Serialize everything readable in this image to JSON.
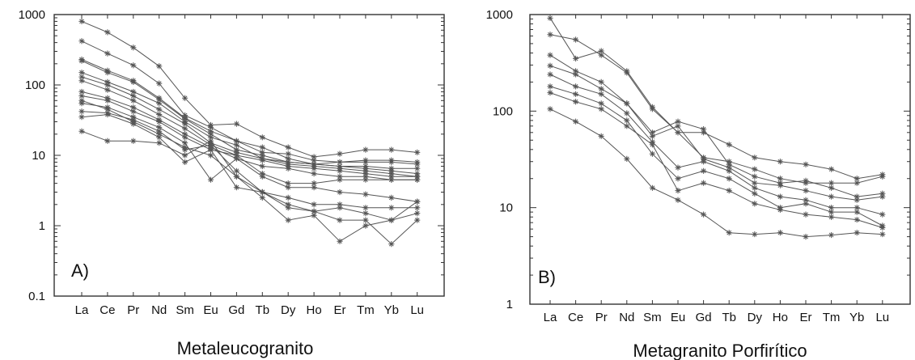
{
  "colors": {
    "line": "#555555",
    "frame": "#333333",
    "text": "#111111"
  },
  "chart_data": [
    {
      "type": "line",
      "panel_label": "A)",
      "title": "Metaleucogranito",
      "y_scale": "log",
      "ylim": [
        0.1,
        1000
      ],
      "y_ticks": [
        0.1,
        1,
        10,
        100,
        1000
      ],
      "y_tick_labels": [
        "0.1",
        "1",
        "10",
        "100",
        "1000"
      ],
      "categories": [
        "La",
        "Ce",
        "Pr",
        "Nd",
        "Sm",
        "Eu",
        "Gd",
        "Tb",
        "Dy",
        "Ho",
        "Er",
        "Tm",
        "Yb",
        "Lu"
      ],
      "grid": false,
      "series": [
        {
          "values": [
            800,
            560,
            340,
            185,
            65,
            27,
            28,
            18,
            13,
            9.5,
            10.5,
            12,
            12,
            11
          ]
        },
        {
          "values": [
            420,
            280,
            190,
            105,
            37,
            25,
            16,
            11,
            10.5,
            8.5,
            8,
            8.5,
            8.5,
            8
          ]
        },
        {
          "values": [
            230,
            160,
            115,
            65,
            34,
            22,
            16,
            13,
            9,
            7.5,
            8,
            8,
            8,
            7.5
          ]
        },
        {
          "values": [
            220,
            150,
            110,
            62,
            33,
            20,
            12,
            10,
            8,
            7.5,
            7,
            7,
            6.5,
            6.5
          ]
        },
        {
          "values": [
            150,
            110,
            80,
            55,
            30,
            18,
            14,
            9,
            8,
            7.5,
            7,
            6.5,
            6,
            5.5
          ]
        },
        {
          "values": [
            130,
            100,
            70,
            45,
            28,
            15,
            11,
            9,
            7.5,
            7,
            6.5,
            6,
            5.5,
            5
          ]
        },
        {
          "values": [
            115,
            85,
            60,
            38,
            24,
            14,
            10,
            8.5,
            7,
            6.5,
            6,
            5.5,
            5,
            5
          ]
        },
        {
          "values": [
            80,
            65,
            48,
            32,
            20,
            13,
            9,
            7,
            6.5,
            5.5,
            5,
            5,
            4.5,
            4.5
          ]
        },
        {
          "values": [
            70,
            60,
            42,
            30,
            18,
            12,
            10,
            5.5,
            4,
            4,
            4.5,
            4.5,
            4.5,
            4.5
          ]
        },
        {
          "values": [
            55,
            48,
            35,
            25,
            15,
            4.5,
            9,
            5,
            3.5,
            3.5,
            3,
            2.8,
            2.5,
            2.2
          ]
        },
        {
          "values": [
            42,
            40,
            32,
            22,
            12,
            14,
            6,
            3,
            2.5,
            2,
            2,
            1.8,
            1.8,
            1.8
          ]
        },
        {
          "values": [
            35,
            38,
            28,
            18,
            8,
            12,
            3.5,
            3,
            1.8,
            1.6,
            1.8,
            1.5,
            1.2,
            2.2
          ]
        },
        {
          "values": [
            22,
            16,
            16,
            15,
            10,
            16,
            5,
            2.5,
            1.2,
            1.4,
            0.6,
            1,
            1.2,
            1.5
          ]
        },
        {
          "values": [
            60,
            45,
            30,
            20,
            13,
            10,
            5,
            3,
            2,
            1.6,
            1.2,
            1.2,
            0.55,
            1.2
          ]
        }
      ]
    },
    {
      "type": "line",
      "panel_label": "B)",
      "title": "Metagranito Porfirítico",
      "y_scale": "log",
      "ylim": [
        1,
        1000
      ],
      "y_ticks": [
        1,
        10,
        100,
        1000
      ],
      "y_tick_labels": [
        "1",
        "10",
        "100",
        "1000"
      ],
      "categories": [
        "La",
        "Ce",
        "Pr",
        "Nd",
        "Sm",
        "Eu",
        "Gd",
        "Tb",
        "Dy",
        "Ho",
        "Er",
        "Tm",
        "Yb",
        "Lu"
      ],
      "grid": false,
      "series": [
        {
          "values": [
            920,
            350,
            420,
            260,
            110,
            60,
            60,
            45,
            33,
            30,
            28,
            25,
            20,
            22
          ]
        },
        {
          "values": [
            620,
            550,
            380,
            250,
            105,
            60,
            33,
            30,
            25,
            20,
            18,
            18,
            18,
            21
          ]
        },
        {
          "values": [
            380,
            260,
            200,
            120,
            60,
            78,
            65,
            28,
            21,
            18,
            19,
            16,
            13,
            14
          ]
        },
        {
          "values": [
            295,
            240,
            170,
            120,
            55,
            70,
            32,
            26,
            18,
            17,
            15,
            13,
            12,
            13
          ]
        },
        {
          "values": [
            240,
            180,
            150,
            95,
            48,
            26,
            30,
            24,
            16,
            13,
            12,
            10,
            10,
            8.5
          ]
        },
        {
          "values": [
            180,
            150,
            120,
            80,
            36,
            20,
            24,
            20,
            14,
            10,
            11,
            9,
            9,
            6.5
          ]
        },
        {
          "values": [
            155,
            125,
            105,
            70,
            45,
            15,
            18,
            15,
            11,
            9.5,
            8.5,
            8,
            7.5,
            6.2
          ]
        },
        {
          "values": [
            105,
            78,
            55,
            32,
            16,
            12,
            8.5,
            5.5,
            5.3,
            5.5,
            5,
            5.2,
            5.5,
            5.3
          ]
        }
      ]
    }
  ]
}
